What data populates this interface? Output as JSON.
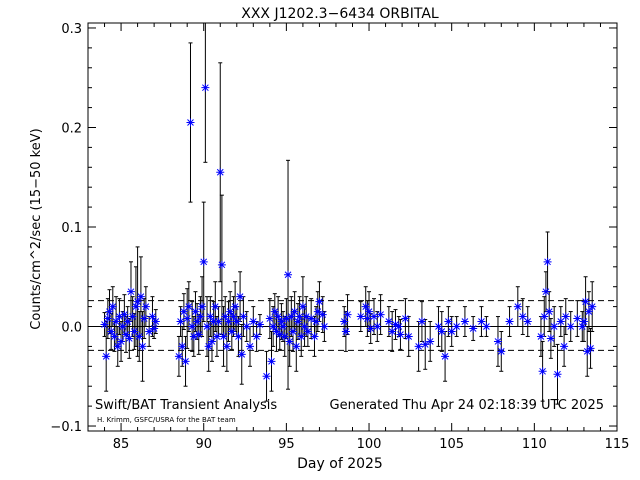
{
  "chart_data": {
    "type": "scatter",
    "title": "XXX J1202.3−6434 ORBITAL",
    "xlabel": "Day of 2025",
    "ylabel": "Counts/cm^2/sec (15−50 keV)",
    "xlim": [
      83,
      115
    ],
    "ylim": [
      -0.105,
      0.305
    ],
    "xticks": [
      85,
      90,
      95,
      100,
      105,
      110,
      115
    ],
    "yticks": [
      -0.1,
      0.0,
      0.1,
      0.2,
      0.3
    ],
    "ytick_labels": [
      "−0.1",
      "0.0",
      "0.1",
      "0.2",
      "0.3"
    ],
    "mean_line": 0.0,
    "sigma_lines": [
      -0.024,
      0.026
    ],
    "marker_color": "#0000ff",
    "errorbar_color": "#000000",
    "footer_left": "Swift/BAT Transient Analysis",
    "footer_credit": "H. Krimm, GSFC/USRA for the BAT team",
    "footer_right": "Generated Thu Apr 24 02:18:39 UTC 2025",
    "points": [
      [
        84.0,
        0.002,
        0.012
      ],
      [
        84.1,
        -0.03,
        0.035
      ],
      [
        84.2,
        0.008,
        0.02
      ],
      [
        84.3,
        0.015,
        0.022
      ],
      [
        84.4,
        -0.005,
        0.018
      ],
      [
        84.5,
        0.02,
        0.02
      ],
      [
        84.6,
        -0.01,
        0.015
      ],
      [
        84.7,
        0.005,
        0.025
      ],
      [
        84.8,
        -0.02,
        0.02
      ],
      [
        84.9,
        0.01,
        0.018
      ],
      [
        85.0,
        -0.015,
        0.02
      ],
      [
        85.1,
        0.0,
        0.015
      ],
      [
        85.2,
        0.012,
        0.02
      ],
      [
        85.3,
        -0.008,
        0.018
      ],
      [
        85.4,
        0.005,
        0.015
      ],
      [
        85.5,
        -0.012,
        0.02
      ],
      [
        85.6,
        0.035,
        0.03
      ],
      [
        85.7,
        0.01,
        0.02
      ],
      [
        85.8,
        -0.005,
        0.018
      ],
      [
        85.9,
        0.02,
        0.04
      ],
      [
        86.0,
        0.025,
        0.055
      ],
      [
        86.1,
        -0.01,
        0.025
      ],
      [
        86.2,
        0.03,
        0.04
      ],
      [
        86.3,
        -0.02,
        0.035
      ],
      [
        86.4,
        0.008,
        0.02
      ],
      [
        86.5,
        0.02,
        0.02
      ],
      [
        86.7,
        -0.005,
        0.015
      ],
      [
        86.9,
        0.01,
        0.02
      ],
      [
        87.0,
        -0.002,
        0.01
      ],
      [
        87.1,
        0.005,
        0.012
      ],
      [
        88.5,
        -0.03,
        0.02
      ],
      [
        88.6,
        0.005,
        0.015
      ],
      [
        88.7,
        -0.02,
        0.02
      ],
      [
        88.8,
        0.015,
        0.018
      ],
      [
        88.9,
        -0.035,
        0.025
      ],
      [
        89.0,
        0.008,
        0.03
      ],
      [
        89.1,
        0.02,
        0.025
      ],
      [
        89.2,
        0.205,
        0.08
      ],
      [
        89.3,
        0.0,
        0.025
      ],
      [
        89.4,
        -0.01,
        0.02
      ],
      [
        89.5,
        0.015,
        0.02
      ],
      [
        89.6,
        0.005,
        0.018
      ],
      [
        89.7,
        -0.008,
        0.02
      ],
      [
        89.8,
        0.01,
        0.02
      ],
      [
        89.9,
        0.02,
        0.03
      ],
      [
        90.0,
        0.065,
        0.06
      ],
      [
        90.1,
        0.24,
        0.075
      ],
      [
        90.2,
        0.0,
        0.03
      ],
      [
        90.3,
        -0.02,
        0.025
      ],
      [
        90.4,
        0.01,
        0.02
      ],
      [
        90.5,
        -0.015,
        0.02
      ],
      [
        90.6,
        0.005,
        0.02
      ],
      [
        90.7,
        0.02,
        0.025
      ],
      [
        90.8,
        -0.01,
        0.02
      ],
      [
        90.9,
        0.005,
        0.015
      ],
      [
        91.0,
        0.155,
        0.11
      ],
      [
        91.1,
        0.062,
        0.07
      ],
      [
        91.2,
        -0.01,
        0.03
      ],
      [
        91.3,
        0.01,
        0.02
      ],
      [
        91.4,
        -0.02,
        0.025
      ],
      [
        91.5,
        0.005,
        0.02
      ],
      [
        91.6,
        0.015,
        0.02
      ],
      [
        91.7,
        -0.005,
        0.018
      ],
      [
        91.8,
        0.01,
        0.02
      ],
      [
        91.9,
        0.02,
        0.025
      ],
      [
        92.0,
        0.005,
        0.015
      ],
      [
        92.1,
        -0.01,
        0.02
      ],
      [
        92.2,
        0.03,
        0.025
      ],
      [
        92.3,
        -0.028,
        0.03
      ],
      [
        92.4,
        0.01,
        0.02
      ],
      [
        92.6,
        0.0,
        0.015
      ],
      [
        92.8,
        -0.02,
        0.02
      ],
      [
        93.0,
        0.005,
        0.015
      ],
      [
        93.2,
        -0.01,
        0.015
      ],
      [
        93.4,
        0.002,
        0.01
      ],
      [
        93.8,
        -0.05,
        0.025
      ],
      [
        94.0,
        0.008,
        0.02
      ],
      [
        94.1,
        -0.035,
        0.03
      ],
      [
        94.2,
        0.0,
        0.02
      ],
      [
        94.3,
        0.015,
        0.018
      ],
      [
        94.4,
        -0.005,
        0.02
      ],
      [
        94.5,
        0.01,
        0.02
      ],
      [
        94.6,
        -0.008,
        0.015
      ],
      [
        94.7,
        0.005,
        0.018
      ],
      [
        94.8,
        0.0,
        0.015
      ],
      [
        94.9,
        -0.01,
        0.02
      ],
      [
        95.0,
        0.008,
        0.02
      ],
      [
        95.1,
        0.052,
        0.115
      ],
      [
        95.2,
        -0.015,
        0.025
      ],
      [
        95.3,
        0.01,
        0.02
      ],
      [
        95.4,
        -0.005,
        0.02
      ],
      [
        95.5,
        0.015,
        0.02
      ],
      [
        95.6,
        -0.02,
        0.025
      ],
      [
        95.7,
        0.005,
        0.018
      ],
      [
        95.8,
        0.01,
        0.02
      ],
      [
        95.9,
        -0.01,
        0.02
      ],
      [
        96.0,
        0.02,
        0.03
      ],
      [
        96.1,
        0.0,
        0.02
      ],
      [
        96.2,
        0.01,
        0.02
      ],
      [
        96.3,
        -0.005,
        0.015
      ],
      [
        96.5,
        0.008,
        0.02
      ],
      [
        96.7,
        -0.01,
        0.02
      ],
      [
        96.8,
        0.005,
        0.015
      ],
      [
        96.9,
        0.015,
        0.02
      ],
      [
        97.0,
        0.025,
        0.02
      ],
      [
        97.2,
        0.012,
        0.018
      ],
      [
        97.3,
        0.0,
        0.015
      ],
      [
        98.5,
        0.005,
        0.015
      ],
      [
        98.6,
        -0.005,
        0.02
      ],
      [
        98.7,
        0.012,
        0.02
      ],
      [
        99.5,
        0.01,
        0.015
      ],
      [
        99.8,
        0.02,
        0.02
      ],
      [
        99.9,
        0.008,
        0.018
      ],
      [
        100.0,
        0.015,
        0.02
      ],
      [
        100.1,
        -0.002,
        0.015
      ],
      [
        100.3,
        0.01,
        0.018
      ],
      [
        100.5,
        0.0,
        0.015
      ],
      [
        100.7,
        0.012,
        0.02
      ],
      [
        101.2,
        0.005,
        0.015
      ],
      [
        101.4,
        -0.005,
        0.02
      ],
      [
        101.6,
        0.002,
        0.015
      ],
      [
        101.8,
        0.0,
        0.01
      ],
      [
        101.9,
        -0.008,
        0.015
      ],
      [
        102.2,
        0.008,
        0.02
      ],
      [
        102.4,
        -0.01,
        0.02
      ],
      [
        103.0,
        -0.02,
        0.025
      ],
      [
        103.2,
        0.005,
        0.02
      ],
      [
        103.4,
        -0.018,
        0.025
      ],
      [
        103.7,
        -0.015,
        0.02
      ],
      [
        104.2,
        0.0,
        0.02
      ],
      [
        104.4,
        -0.005,
        0.02
      ],
      [
        104.6,
        -0.03,
        0.025
      ],
      [
        104.8,
        0.005,
        0.015
      ],
      [
        105.0,
        -0.005,
        0.015
      ],
      [
        105.3,
        0.0,
        0.01
      ],
      [
        105.8,
        0.005,
        0.015
      ],
      [
        106.3,
        -0.002,
        0.012
      ],
      [
        106.8,
        0.005,
        0.015
      ],
      [
        107.1,
        0.0,
        0.01
      ],
      [
        107.8,
        -0.015,
        0.025
      ],
      [
        108.0,
        -0.025,
        0.02
      ],
      [
        108.5,
        0.005,
        0.015
      ],
      [
        109.0,
        0.02,
        0.02
      ],
      [
        109.3,
        0.01,
        0.018
      ],
      [
        109.6,
        0.005,
        0.015
      ],
      [
        110.4,
        -0.01,
        0.02
      ],
      [
        110.5,
        -0.045,
        0.03
      ],
      [
        110.6,
        0.01,
        0.02
      ],
      [
        110.7,
        0.035,
        0.02
      ],
      [
        110.8,
        0.065,
        0.03
      ],
      [
        110.9,
        0.015,
        0.02
      ],
      [
        111.0,
        -0.012,
        0.02
      ],
      [
        111.2,
        0.0,
        0.02
      ],
      [
        111.4,
        -0.048,
        0.03
      ],
      [
        111.6,
        0.005,
        0.015
      ],
      [
        111.8,
        -0.02,
        0.02
      ],
      [
        111.9,
        0.01,
        0.018
      ],
      [
        112.2,
        0.0,
        0.015
      ],
      [
        112.6,
        0.008,
        0.018
      ],
      [
        112.9,
        0.0,
        0.015
      ],
      [
        113.0,
        0.005,
        0.02
      ],
      [
        113.1,
        0.025,
        0.025
      ],
      [
        113.2,
        -0.025,
        0.025
      ],
      [
        113.3,
        0.015,
        0.02
      ],
      [
        113.4,
        -0.022,
        0.02
      ],
      [
        113.5,
        0.02,
        0.025
      ]
    ]
  }
}
